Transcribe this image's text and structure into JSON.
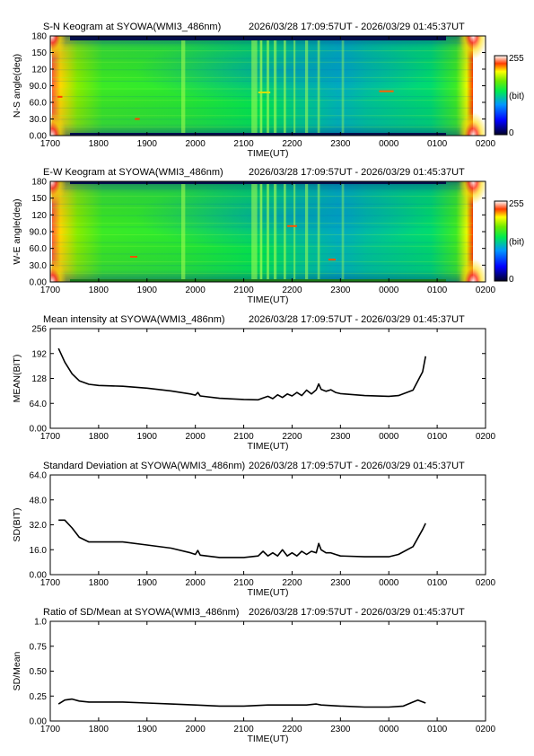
{
  "page": {
    "background": "#ffffff",
    "line_color": "#000000"
  },
  "chart_data": [
    {
      "type": "heatmap",
      "title": "S-N Keogram at SYOWA(WMI3_486nm)",
      "time_range": "2026/03/28 17:09:57UT - 2026/03/29 01:45:37UT",
      "xlabel": "TIME(UT)",
      "ylabel": "N-S angle(deg)",
      "x_ticks": [
        "1700",
        "1800",
        "1900",
        "2000",
        "2100",
        "2200",
        "2300",
        "0000",
        "0100",
        "0200"
      ],
      "y_ticks": [
        "0.00",
        "30.0",
        "60.0",
        "90.0",
        "120",
        "150",
        "180"
      ],
      "xlim": [
        0,
        9
      ],
      "ylim": [
        0,
        180
      ],
      "colorbar": {
        "min_label": "0",
        "max_label": "255",
        "unit_label": "(bit)",
        "colors": [
          "#000000",
          "#0000ff",
          "#00ffff",
          "#00ff00",
          "#ffff00",
          "#ff0000",
          "#ffffff"
        ]
      },
      "bright_bands": [
        {
          "t": 2.75,
          "w": 0.08,
          "a": 0.55
        },
        {
          "t": 4.22,
          "w": 0.12,
          "a": 0.55
        },
        {
          "t": 4.36,
          "w": 0.05,
          "a": 0.7
        },
        {
          "t": 4.5,
          "w": 0.05,
          "a": 0.65
        },
        {
          "t": 4.65,
          "w": 0.06,
          "a": 0.6
        },
        {
          "t": 4.85,
          "w": 0.05,
          "a": 0.6
        },
        {
          "t": 5.05,
          "w": 0.04,
          "a": 0.55
        },
        {
          "t": 5.3,
          "w": 0.06,
          "a": 0.55
        },
        {
          "t": 5.55,
          "w": 0.05,
          "a": 0.5
        },
        {
          "t": 6.05,
          "w": 0.05,
          "a": 0.4
        }
      ],
      "arcs": [
        {
          "t0": 0.15,
          "t1": 0.25,
          "y": 70,
          "c": "#ff4000"
        },
        {
          "t0": 1.75,
          "t1": 1.85,
          "y": 30,
          "c": "#ff4000"
        },
        {
          "t0": 6.8,
          "t1": 7.1,
          "y": 80,
          "c": "#ff6000"
        },
        {
          "t0": 4.3,
          "t1": 4.55,
          "y": 78,
          "c": "#e0e000"
        }
      ]
    },
    {
      "type": "heatmap",
      "title": "E-W Keogram at SYOWA(WMI3_486nm)",
      "time_range": "2026/03/28 17:09:57UT - 2026/03/29 01:45:37UT",
      "xlabel": "TIME(UT)",
      "ylabel": "W-E angle(deg)",
      "x_ticks": [
        "1700",
        "1800",
        "1900",
        "2000",
        "2100",
        "2200",
        "2300",
        "0000",
        "0100",
        "0200"
      ],
      "y_ticks": [
        "0.00",
        "30.0",
        "60.0",
        "90.0",
        "120",
        "150",
        "180"
      ],
      "xlim": [
        0,
        9
      ],
      "ylim": [
        0,
        180
      ],
      "colorbar": {
        "min_label": "0",
        "max_label": "255",
        "unit_label": "(bit)",
        "colors": [
          "#000000",
          "#0000ff",
          "#00ffff",
          "#00ff00",
          "#ffff00",
          "#ff0000",
          "#ffffff"
        ]
      },
      "bright_bands": [
        {
          "t": 2.75,
          "w": 0.08,
          "a": 0.55
        },
        {
          "t": 4.22,
          "w": 0.12,
          "a": 0.55
        },
        {
          "t": 4.36,
          "w": 0.05,
          "a": 0.7
        },
        {
          "t": 4.5,
          "w": 0.05,
          "a": 0.65
        },
        {
          "t": 4.65,
          "w": 0.06,
          "a": 0.6
        },
        {
          "t": 4.85,
          "w": 0.05,
          "a": 0.6
        },
        {
          "t": 5.05,
          "w": 0.04,
          "a": 0.55
        },
        {
          "t": 5.3,
          "w": 0.06,
          "a": 0.55
        },
        {
          "t": 5.55,
          "w": 0.05,
          "a": 0.5
        },
        {
          "t": 6.05,
          "w": 0.05,
          "a": 0.4
        }
      ],
      "arcs": [
        {
          "t0": 1.65,
          "t1": 1.8,
          "y": 45,
          "c": "#ff5000"
        },
        {
          "t0": 4.9,
          "t1": 5.1,
          "y": 100,
          "c": "#ff5000"
        },
        {
          "t0": 5.75,
          "t1": 5.9,
          "y": 40,
          "c": "#ff5000"
        }
      ]
    },
    {
      "type": "line",
      "title": "Mean intensity at SYOWA(WMI3_486nm)",
      "time_range": "2026/03/28 17:09:57UT - 2026/03/29 01:45:37UT",
      "xlabel": "TIME(UT)",
      "ylabel": "MEAN(BIT)",
      "x_ticks": [
        "1700",
        "1800",
        "1900",
        "2000",
        "2100",
        "2200",
        "2300",
        "0000",
        "0100",
        "0200"
      ],
      "y_ticks": [
        "0.00",
        "64.0",
        "128",
        "192",
        "256"
      ],
      "xlim": [
        0,
        9
      ],
      "ylim": [
        0,
        256
      ],
      "x": [
        0.17,
        0.3,
        0.45,
        0.6,
        0.8,
        1.0,
        1.5,
        2.0,
        2.5,
        2.9,
        3.0,
        3.05,
        3.1,
        3.5,
        4.0,
        4.3,
        4.4,
        4.5,
        4.6,
        4.7,
        4.8,
        4.9,
        5.0,
        5.1,
        5.2,
        5.3,
        5.4,
        5.5,
        5.55,
        5.6,
        5.7,
        5.8,
        5.9,
        6.0,
        6.5,
        7.0,
        7.2,
        7.5,
        7.7,
        7.76
      ],
      "values": [
        205,
        170,
        140,
        122,
        113,
        110,
        108,
        103,
        96,
        88,
        85,
        92,
        83,
        77,
        74,
        73,
        78,
        82,
        76,
        86,
        79,
        88,
        83,
        92,
        84,
        98,
        88,
        99,
        114,
        100,
        95,
        99,
        92,
        89,
        84,
        82,
        84,
        98,
        145,
        185
      ],
      "series": [
        {
          "name": "",
          "color": "#000000"
        }
      ]
    },
    {
      "type": "line",
      "title": "Standard Deviation at SYOWA(WMI3_486nm)",
      "time_range": "2026/03/28 17:09:57UT - 2026/03/29 01:45:37UT",
      "xlabel": "TIME(UT)",
      "ylabel": "SD(BIT)",
      "x_ticks": [
        "1700",
        "1800",
        "1900",
        "2000",
        "2100",
        "2200",
        "2300",
        "0000",
        "0100",
        "0200"
      ],
      "y_ticks": [
        "0.00",
        "16.0",
        "32.0",
        "48.0",
        "64.0"
      ],
      "xlim": [
        0,
        9
      ],
      "ylim": [
        0,
        64
      ],
      "x": [
        0.17,
        0.3,
        0.45,
        0.6,
        0.8,
        1.0,
        1.5,
        2.0,
        2.5,
        2.9,
        3.0,
        3.05,
        3.1,
        3.5,
        4.0,
        4.3,
        4.4,
        4.5,
        4.6,
        4.7,
        4.8,
        4.9,
        5.0,
        5.1,
        5.2,
        5.3,
        5.4,
        5.5,
        5.55,
        5.6,
        5.7,
        5.8,
        5.9,
        6.0,
        6.5,
        7.0,
        7.2,
        7.5,
        7.7,
        7.76
      ],
      "values": [
        35,
        35,
        30,
        24,
        21,
        21,
        21,
        19,
        17,
        14,
        13,
        15.5,
        12.5,
        11,
        11,
        12,
        15,
        12,
        14,
        12,
        16,
        12,
        14,
        12,
        15,
        13,
        15,
        14,
        20,
        16,
        14,
        14,
        13,
        12,
        11.5,
        11.5,
        13,
        18,
        29,
        33
      ],
      "series": [
        {
          "name": "",
          "color": "#000000"
        }
      ]
    },
    {
      "type": "line",
      "title": "Ratio of SD/Mean at SYOWA(WMI3_486nm)",
      "time_range": "2026/03/28 17:09:57UT - 2026/03/29 01:45:37UT",
      "xlabel": "TIME(UT)",
      "ylabel": "SD/Mean",
      "x_ticks": [
        "1700",
        "1800",
        "1900",
        "2000",
        "2100",
        "2200",
        "2300",
        "0000",
        "0100",
        "0200"
      ],
      "y_ticks": [
        "0.00",
        "0.25",
        "0.50",
        "0.75",
        "1.0"
      ],
      "xlim": [
        0,
        9
      ],
      "ylim": [
        0,
        1.0
      ],
      "x": [
        0.17,
        0.3,
        0.45,
        0.6,
        0.8,
        1.0,
        1.5,
        2.0,
        2.5,
        3.0,
        3.5,
        4.0,
        4.5,
        4.8,
        5.0,
        5.3,
        5.5,
        5.6,
        6.0,
        6.5,
        7.0,
        7.3,
        7.5,
        7.6,
        7.76
      ],
      "values": [
        0.17,
        0.21,
        0.22,
        0.2,
        0.19,
        0.19,
        0.19,
        0.18,
        0.17,
        0.16,
        0.15,
        0.15,
        0.16,
        0.16,
        0.16,
        0.16,
        0.17,
        0.16,
        0.15,
        0.14,
        0.14,
        0.15,
        0.19,
        0.21,
        0.18
      ],
      "series": [
        {
          "name": "",
          "color": "#000000"
        }
      ]
    }
  ]
}
